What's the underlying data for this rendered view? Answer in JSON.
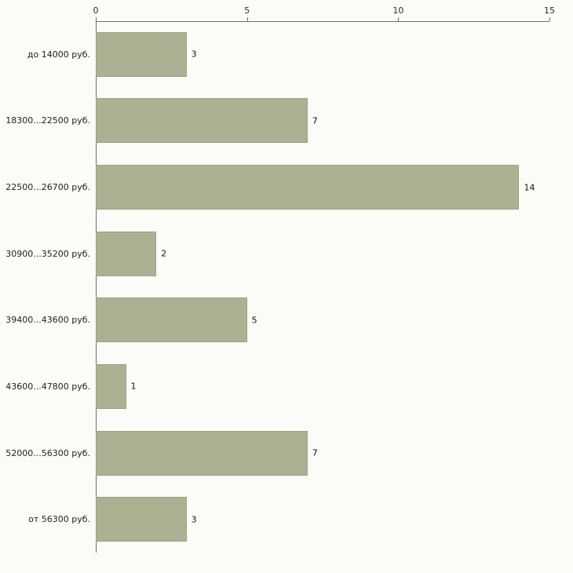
{
  "chart_data": {
    "type": "bar",
    "orientation": "horizontal",
    "title": "",
    "xlabel": "",
    "ylabel": "",
    "categories": [
      "до 14000 руб.",
      "18300...22500 руб.",
      "22500...26700 руб.",
      "30900...35200 руб.",
      "39400...43600 руб.",
      "43600...47800 руб.",
      "52000...56300 руб.",
      "от 56300 руб."
    ],
    "values": [
      3,
      7,
      14,
      2,
      5,
      1,
      7,
      3
    ],
    "xlim": [
      0,
      15
    ],
    "x_ticks": [
      0,
      5,
      10,
      15
    ],
    "grid": false,
    "legend": "none",
    "colors": {
      "bar_fill": "#abb293",
      "bar_border": "#9aa381",
      "axis": "#6e6e6e",
      "text": "#1e1e1e",
      "background": "#fbfcf8"
    }
  }
}
